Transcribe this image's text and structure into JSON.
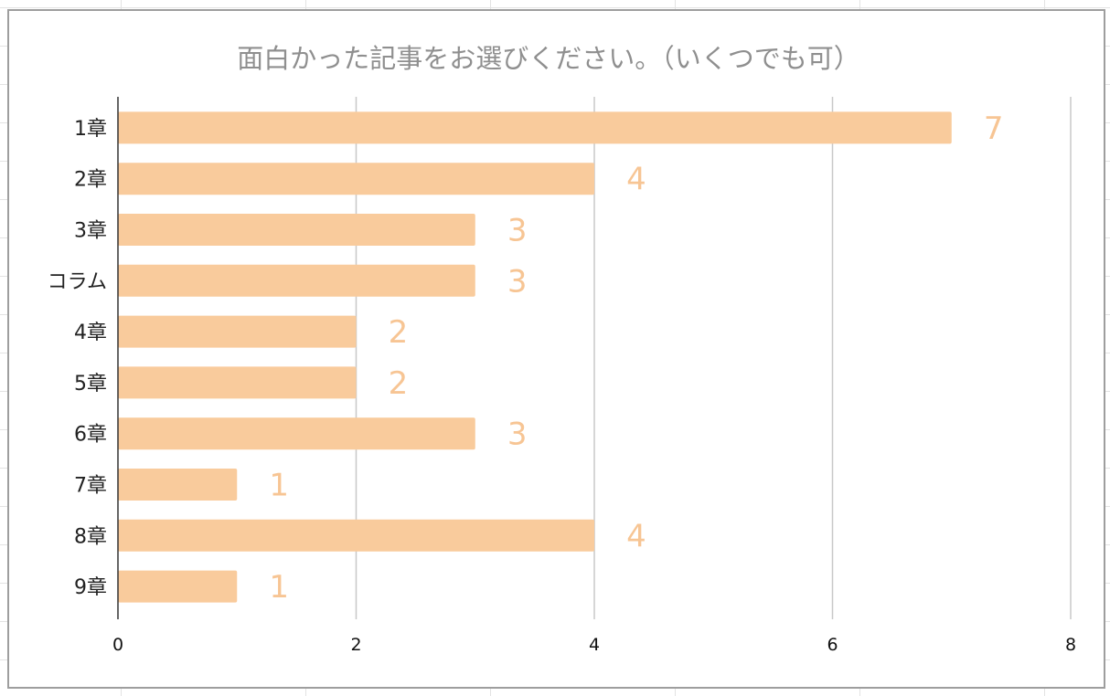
{
  "chart_data": {
    "type": "bar",
    "orientation": "horizontal",
    "title": "面白かった記事をお選びください。（いくつでも可）",
    "categories": [
      "1章",
      "2章",
      "3章",
      "コラム",
      "4章",
      "5章",
      "6章",
      "7章",
      "8章",
      "9章"
    ],
    "values": [
      7,
      4,
      3,
      3,
      2,
      2,
      3,
      1,
      4,
      1
    ],
    "xlim": [
      0,
      8
    ],
    "xticks": [
      0,
      2,
      4,
      6,
      8
    ],
    "grid": true,
    "legend": "none",
    "data_labels": true,
    "colors": {
      "bar": "#f9cb9c",
      "data_label": "#f7c594",
      "grid": "#c8c8c8",
      "title": "#8f8f8f",
      "axis": "#333333"
    }
  }
}
